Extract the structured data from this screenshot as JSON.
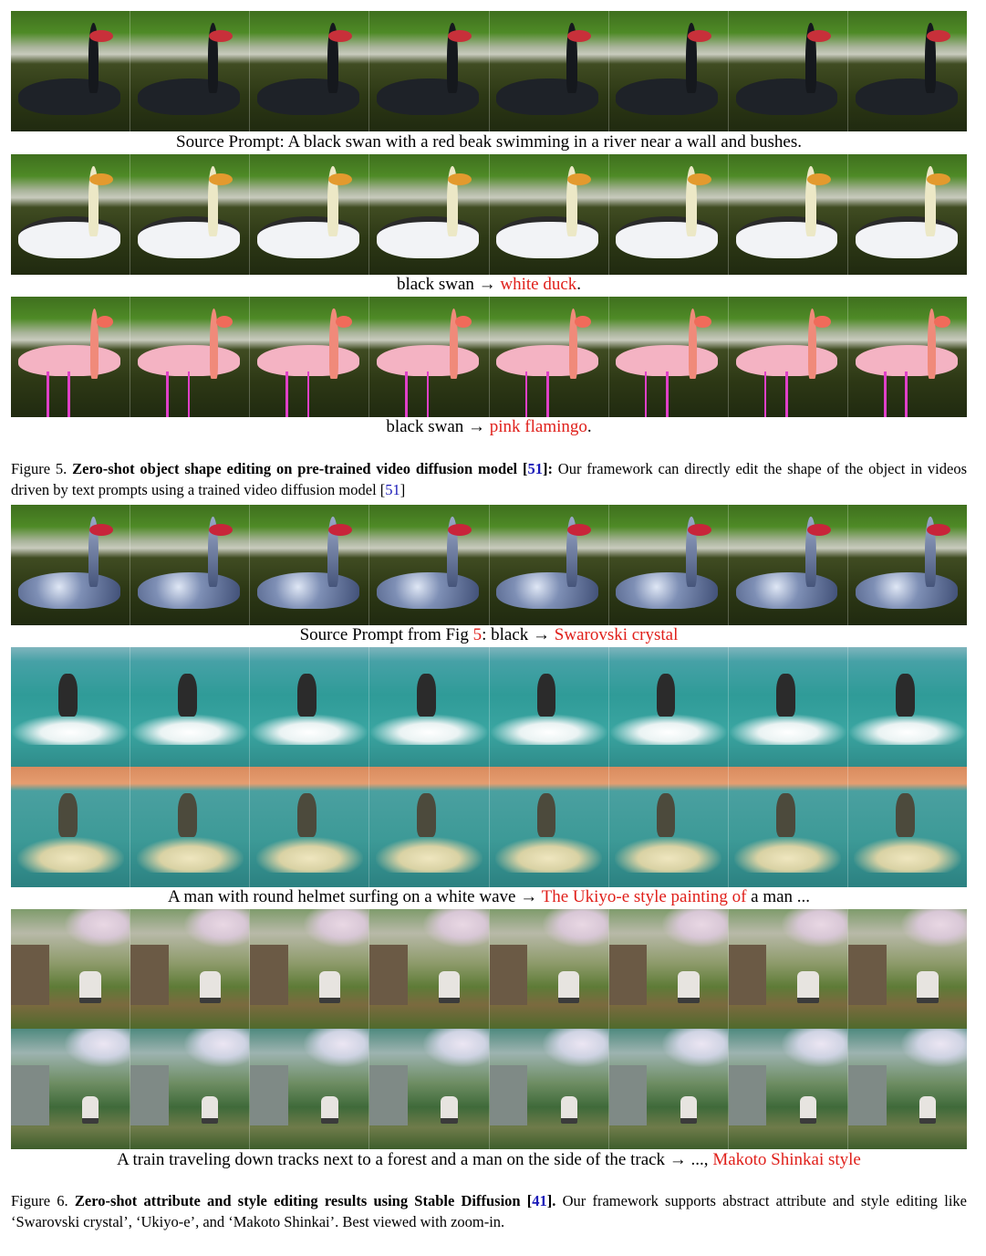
{
  "figure5": {
    "row1_caption": "Source Prompt: A black swan with a red beak swimming in a river near a wall and bushes.",
    "row2_caption_plain": "black swan → ",
    "row2_caption_red": "white duck",
    "row2_caption_end": ".",
    "row3_caption_plain": "black swan → ",
    "row3_caption_red": "pink flamingo",
    "row3_caption_end": ".",
    "label": "Figure 5.",
    "bold": "Zero-shot object shape editing on pre-trained video diffusion model [",
    "ref": "51",
    "bold_end": "]:",
    "text": " Our framework can directly edit the shape of the object in videos driven by text prompts using a trained video diffusion model [",
    "ref2": "51",
    "text_end": "]"
  },
  "figure6": {
    "crystal_caption_plain": "Source Prompt from Fig ",
    "crystal_caption_ref": "5",
    "crystal_caption_mid": ": black → ",
    "crystal_caption_red": "Swarovski crystal",
    "surf_caption_plain": "A man with round helmet surfing on a white wave → ",
    "surf_caption_red": "The Ukiyo-e style painting of ",
    "surf_caption_end": " a man ...",
    "train_caption_plain": "A train traveling down tracks next to a forest and a man on the side of the track → ..., ",
    "train_caption_red": "Makoto Shinkai style",
    "label": "Figure 6.",
    "bold": "Zero-shot attribute and style editing results using Stable Diffusion [",
    "ref": "41",
    "bold_end": "].",
    "text": " Our framework supports abstract attribute and style editing like ‘Swarovski crystal’, ‘Ukiyo-e’, and ‘Makoto Shinkai’. Best viewed with zoom-in."
  },
  "colors": {
    "highlight_red": "#e0201b",
    "ref_blue": "#1a1ab8"
  }
}
